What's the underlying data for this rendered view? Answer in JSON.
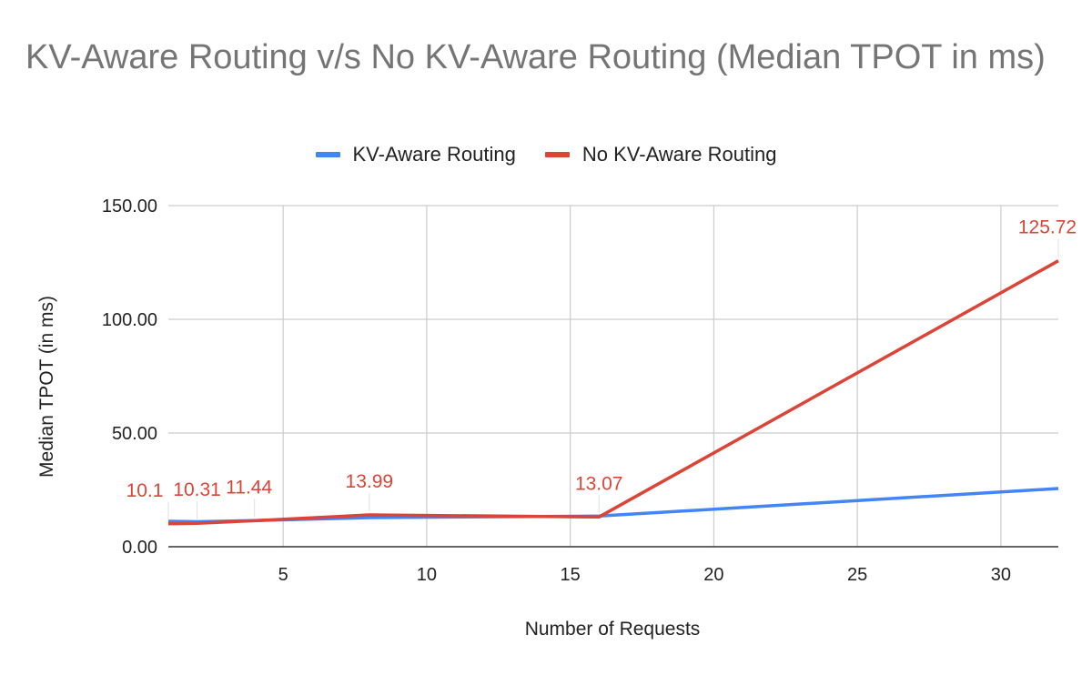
{
  "chart_data": {
    "type": "line",
    "title": "KV-Aware Routing v/s No KV-Aware Routing (Median TPOT in ms)",
    "xlabel": "Number of Requests",
    "ylabel": "Median TPOT (in ms)",
    "xlim": [
      1,
      32
    ],
    "ylim": [
      0,
      150
    ],
    "x_ticks": [
      "5",
      "10",
      "15",
      "20",
      "25",
      "30"
    ],
    "y_ticks": [
      "0.00",
      "50.00",
      "100.00",
      "150.00"
    ],
    "grid": true,
    "legend_position": "top",
    "x": [
      1,
      2,
      4,
      8,
      16,
      32
    ],
    "series": [
      {
        "name": "KV-Aware Routing",
        "color": "#4285f4",
        "values": [
          11.2,
          11.0,
          11.5,
          12.8,
          13.5,
          25.6
        ]
      },
      {
        "name": "No KV-Aware Routing",
        "color": "#db4437",
        "values": [
          10.1,
          10.31,
          11.44,
          13.99,
          13.07,
          125.72
        ],
        "data_labels": [
          "10.1",
          "10.31",
          "11.44",
          "13.99",
          "13.07",
          "125.72"
        ]
      }
    ]
  }
}
